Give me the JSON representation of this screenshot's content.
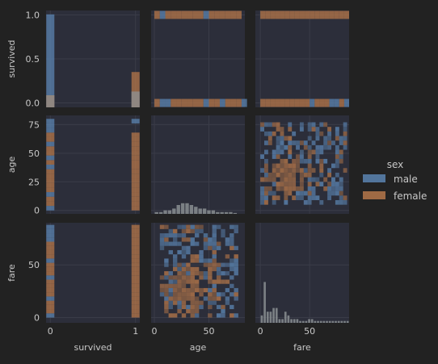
{
  "colors": {
    "background": "#222222",
    "panel": "#2c2e3a",
    "grid": "#3a3c48",
    "text": "#c8c8c8",
    "male": "#5b84b1",
    "female": "#b5774a",
    "mixed": "#8a8e92"
  },
  "chart_data": {
    "type": "pairgrid",
    "variables": [
      "survived",
      "age",
      "fare"
    ],
    "axis_labels": {
      "survived": "survived",
      "age": "age",
      "fare": "fare"
    },
    "ticks": {
      "survived_y": [
        "0.0",
        "0.5",
        "1.0"
      ],
      "age_y": [
        "0",
        "25",
        "50",
        "75"
      ],
      "fare_y": [
        "0",
        "50"
      ],
      "survived_x": [
        "0",
        "1"
      ],
      "age_x": [
        "0",
        "50"
      ],
      "fare_x": [
        "0",
        "50"
      ]
    },
    "ranges": {
      "survived": [
        -0.05,
        1.05
      ],
      "age": [
        -3,
        83
      ],
      "fare": [
        -5,
        90
      ]
    },
    "grid": true,
    "legend": {
      "title": "sex",
      "position": "right",
      "entries": [
        "male",
        "female"
      ]
    },
    "hue_series": [
      {
        "name": "male",
        "color": "#5b84b1"
      },
      {
        "name": "female",
        "color": "#b5774a"
      }
    ],
    "diagonal": {
      "survived": {
        "bins": [
          {
            "x": 0.0,
            "male": 1.0,
            "female": 0.13
          },
          {
            "x": 1.0,
            "male": 0.17,
            "female": 0.38
          }
        ]
      },
      "age": {
        "bin_width": 4,
        "bins": [
          [
            0,
            1
          ],
          [
            4,
            1
          ],
          [
            8,
            2
          ],
          [
            12,
            2
          ],
          [
            16,
            3
          ],
          [
            20,
            5
          ],
          [
            24,
            6
          ],
          [
            28,
            6
          ],
          [
            32,
            5
          ],
          [
            36,
            4
          ],
          [
            40,
            3
          ],
          [
            44,
            3
          ],
          [
            48,
            2
          ],
          [
            52,
            2
          ],
          [
            56,
            1
          ],
          [
            60,
            1
          ],
          [
            64,
            1
          ],
          [
            68,
            1
          ],
          [
            72,
            0.5
          ]
        ]
      },
      "fare": {
        "bin_width": 3,
        "bins": [
          [
            0,
            2
          ],
          [
            3,
            11
          ],
          [
            6,
            3
          ],
          [
            9,
            3
          ],
          [
            12,
            4
          ],
          [
            15,
            4
          ],
          [
            18,
            1
          ],
          [
            21,
            1
          ],
          [
            24,
            3
          ],
          [
            27,
            2
          ],
          [
            30,
            1
          ],
          [
            33,
            1
          ],
          [
            36,
            1
          ],
          [
            39,
            0.5
          ],
          [
            42,
            0.5
          ],
          [
            45,
            0.5
          ],
          [
            48,
            1
          ],
          [
            51,
            1
          ],
          [
            54,
            0.5
          ],
          [
            57,
            0.5
          ],
          [
            60,
            0.5
          ],
          [
            63,
            0.5
          ],
          [
            66,
            0.5
          ],
          [
            69,
            0.5
          ],
          [
            72,
            0.5
          ],
          [
            75,
            0.5
          ],
          [
            78,
            0.5
          ],
          [
            81,
            0.5
          ],
          [
            84,
            0.5
          ],
          [
            87,
            0.5
          ]
        ]
      }
    },
    "survived_strips": {
      "age": {
        "0": [
          [
            0,
            "m"
          ],
          [
            4,
            "f"
          ],
          [
            8,
            "f"
          ],
          [
            12,
            "m"
          ],
          [
            16,
            "f"
          ],
          [
            20,
            "f"
          ],
          [
            24,
            "f"
          ],
          [
            28,
            "f"
          ],
          [
            32,
            "f"
          ],
          [
            36,
            "m"
          ],
          [
            40,
            "f"
          ],
          [
            44,
            "m"
          ],
          [
            48,
            "f"
          ],
          [
            52,
            "f"
          ],
          [
            56,
            "m"
          ],
          [
            60,
            "f"
          ],
          [
            64,
            "f"
          ],
          [
            68,
            "m"
          ],
          [
            72,
            "m"
          ],
          [
            76,
            "m"
          ]
        ],
        "1": [
          [
            0,
            "f"
          ],
          [
            4,
            "f"
          ],
          [
            8,
            "f"
          ],
          [
            12,
            "f"
          ],
          [
            16,
            "f"
          ],
          [
            20,
            "f"
          ],
          [
            24,
            "f"
          ],
          [
            28,
            "f"
          ],
          [
            32,
            "f"
          ],
          [
            36,
            "f"
          ],
          [
            40,
            "f"
          ],
          [
            44,
            "f"
          ],
          [
            48,
            "f"
          ],
          [
            52,
            "f"
          ],
          [
            56,
            "f"
          ],
          [
            60,
            "f"
          ],
          [
            64,
            "f"
          ],
          [
            76,
            "m"
          ]
        ]
      },
      "fare": {
        "0": [
          [
            0,
            "m"
          ],
          [
            4,
            "f"
          ],
          [
            8,
            "f"
          ],
          [
            12,
            "f"
          ],
          [
            16,
            "m"
          ],
          [
            20,
            "f"
          ],
          [
            24,
            "f"
          ],
          [
            28,
            "f"
          ],
          [
            32,
            "f"
          ],
          [
            36,
            "m"
          ],
          [
            40,
            "f"
          ],
          [
            44,
            "f"
          ],
          [
            48,
            "f"
          ],
          [
            52,
            "m"
          ],
          [
            56,
            "f"
          ],
          [
            60,
            "f"
          ],
          [
            64,
            "f"
          ],
          [
            68,
            "f"
          ],
          [
            72,
            "m"
          ],
          [
            76,
            "m"
          ],
          [
            80,
            "m"
          ],
          [
            84,
            "m"
          ]
        ],
        "1": [
          [
            0,
            "f"
          ],
          [
            4,
            "f"
          ],
          [
            8,
            "f"
          ],
          [
            12,
            "f"
          ],
          [
            16,
            "f"
          ],
          [
            20,
            "f"
          ],
          [
            24,
            "f"
          ],
          [
            28,
            "f"
          ],
          [
            32,
            "f"
          ],
          [
            36,
            "f"
          ],
          [
            40,
            "f"
          ],
          [
            44,
            "f"
          ],
          [
            48,
            "f"
          ],
          [
            52,
            "f"
          ],
          [
            56,
            "f"
          ],
          [
            60,
            "f"
          ],
          [
            64,
            "f"
          ],
          [
            68,
            "f"
          ],
          [
            72,
            "f"
          ],
          [
            76,
            "f"
          ],
          [
            80,
            "f"
          ],
          [
            84,
            "f"
          ]
        ]
      }
    },
    "age_survived_strips": {
      "1": [
        [
          0,
          "f"
        ],
        [
          5,
          "m"
        ],
        [
          10,
          "f"
        ],
        [
          15,
          "f"
        ],
        [
          20,
          "f"
        ],
        [
          25,
          "f"
        ],
        [
          30,
          "f"
        ],
        [
          35,
          "f"
        ],
        [
          40,
          "f"
        ],
        [
          45,
          "m"
        ],
        [
          50,
          "f"
        ],
        [
          55,
          "f"
        ],
        [
          60,
          "f"
        ],
        [
          65,
          "f"
        ],
        [
          70,
          "f"
        ],
        [
          75,
          "f"
        ]
      ],
      "0": [
        [
          0,
          "f"
        ],
        [
          5,
          "m"
        ],
        [
          10,
          "m"
        ],
        [
          15,
          "f"
        ],
        [
          20,
          "f"
        ],
        [
          25,
          "f"
        ],
        [
          30,
          "f"
        ],
        [
          35,
          "f"
        ],
        [
          40,
          "f"
        ],
        [
          45,
          "m"
        ],
        [
          50,
          "f"
        ],
        [
          55,
          "f"
        ],
        [
          60,
          "m"
        ],
        [
          65,
          "f"
        ],
        [
          70,
          "f"
        ],
        [
          75,
          "f"
        ],
        [
          80,
          "m"
        ]
      ]
    },
    "fare_survived_strips": {
      "1": [
        [
          0,
          "f"
        ],
        [
          5,
          "f"
        ],
        [
          10,
          "f"
        ],
        [
          15,
          "f"
        ],
        [
          20,
          "f"
        ],
        [
          25,
          "f"
        ],
        [
          30,
          "f"
        ],
        [
          35,
          "f"
        ],
        [
          40,
          "f"
        ],
        [
          45,
          "f"
        ],
        [
          50,
          "f"
        ],
        [
          55,
          "f"
        ],
        [
          60,
          "f"
        ],
        [
          65,
          "f"
        ],
        [
          70,
          "f"
        ],
        [
          75,
          "f"
        ],
        [
          80,
          "f"
        ],
        [
          85,
          "f"
        ]
      ],
      "0": [
        [
          0,
          "f"
        ],
        [
          5,
          "f"
        ],
        [
          10,
          "f"
        ],
        [
          15,
          "f"
        ],
        [
          20,
          "f"
        ],
        [
          25,
          "f"
        ],
        [
          30,
          "f"
        ],
        [
          35,
          "f"
        ],
        [
          40,
          "f"
        ],
        [
          45,
          "f"
        ],
        [
          50,
          "m"
        ],
        [
          55,
          "f"
        ],
        [
          60,
          "f"
        ],
        [
          65,
          "f"
        ],
        [
          70,
          "m"
        ],
        [
          75,
          "m"
        ],
        [
          80,
          "f"
        ],
        [
          85,
          "m"
        ]
      ]
    },
    "age_fare_cells": {
      "bin_age": 4,
      "bin_fare": 4,
      "female_center": {
        "age": 28,
        "fare": 25
      },
      "female_spread": {
        "age": 14,
        "fare": 18
      },
      "male_region": {
        "age": [
          5,
          75
        ],
        "fare": [
          0,
          85
        ]
      },
      "density": 0.55
    }
  }
}
